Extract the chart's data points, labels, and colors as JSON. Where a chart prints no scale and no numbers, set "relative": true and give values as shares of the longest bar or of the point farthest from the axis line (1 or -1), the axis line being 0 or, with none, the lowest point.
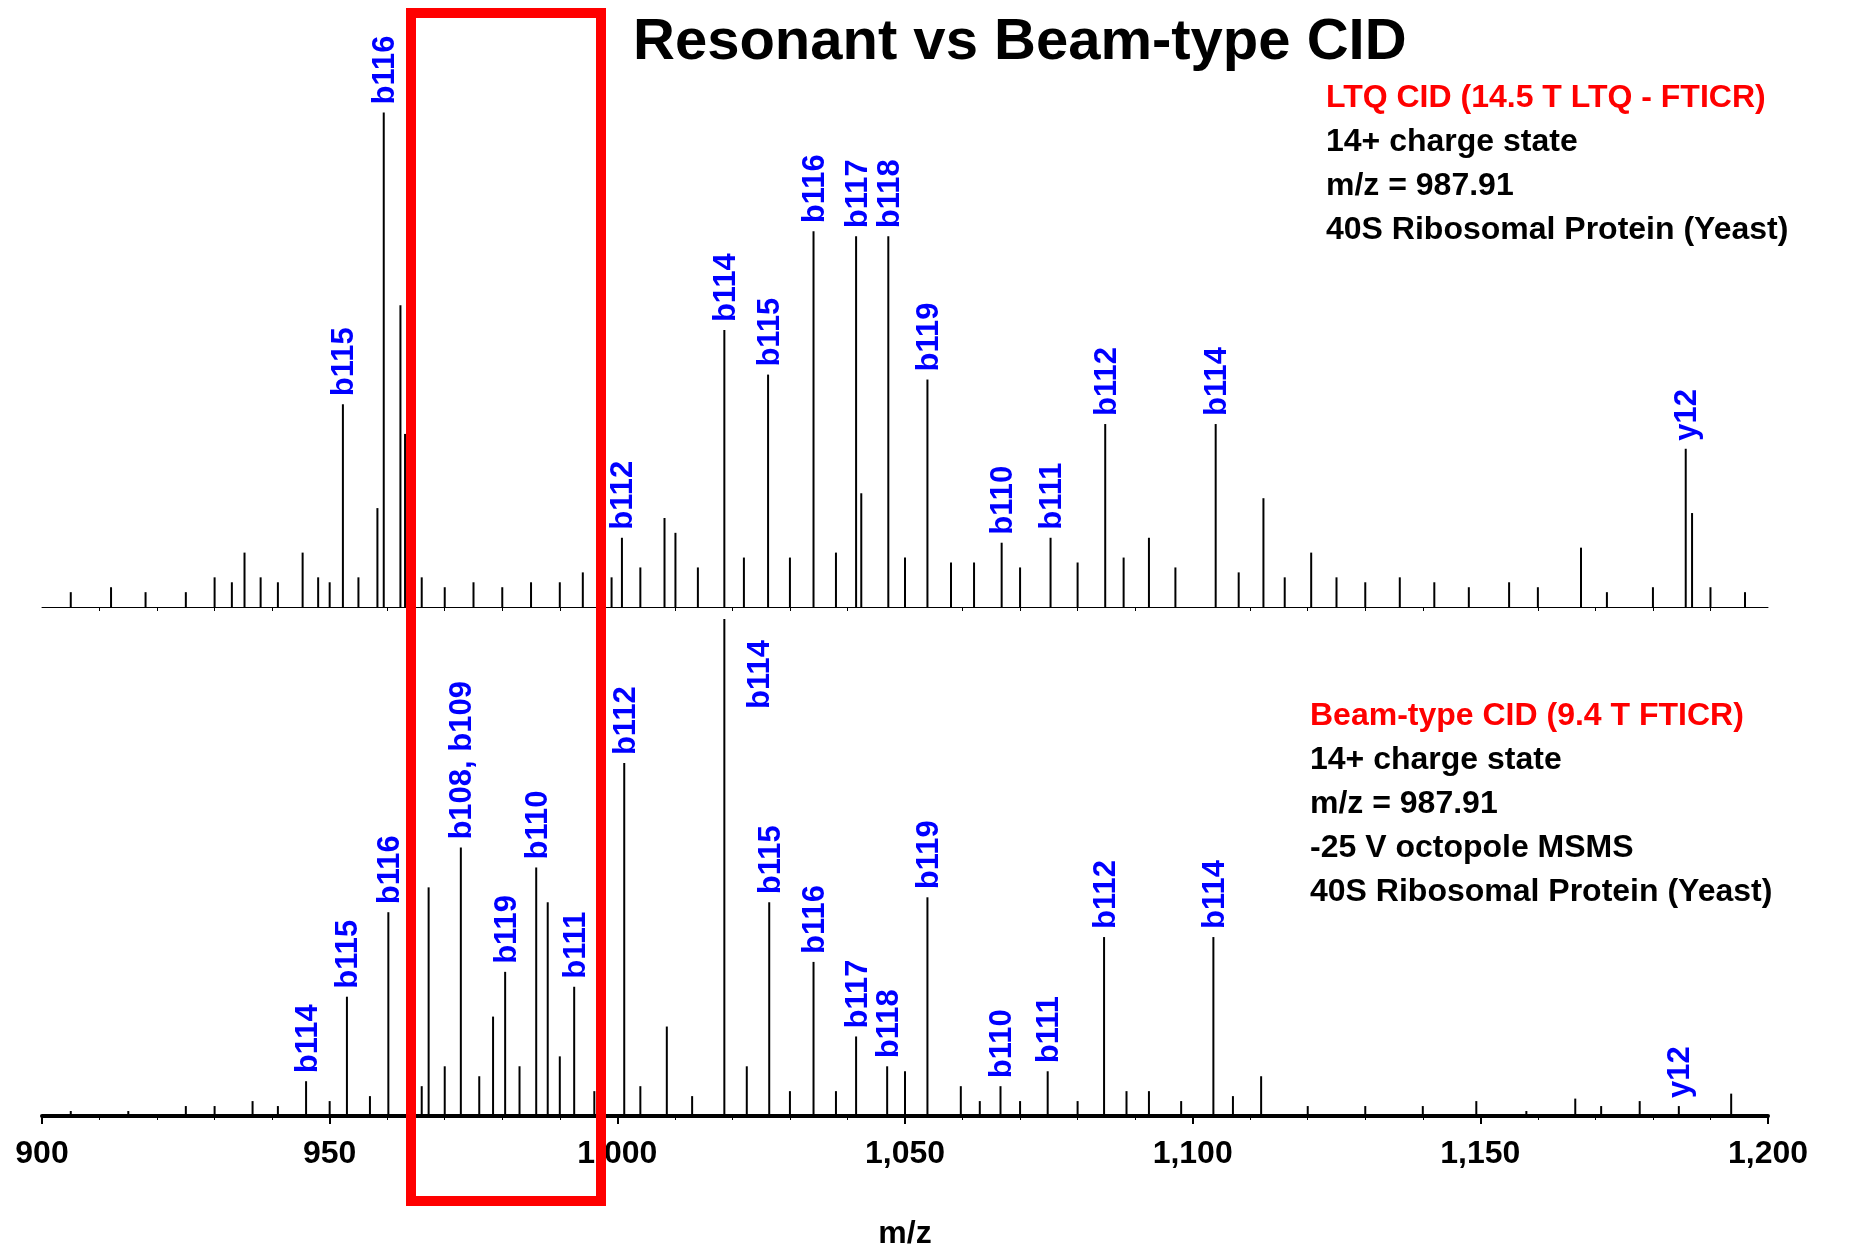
{
  "chart_data": [
    {
      "type": "bar",
      "title": "Resonant vs Beam-type CID",
      "relative": true,
      "tick_labels": false,
      "color": "#000000",
      "x": [
        905,
        912,
        918,
        925,
        930,
        933,
        935.2,
        938,
        941,
        945.3,
        948,
        950,
        952.3,
        955,
        958.3,
        959.4,
        962.3,
        963.1,
        966,
        970,
        975,
        980,
        985,
        990,
        994,
        999,
        1000.8,
        1004,
        1008.2,
        1010.1,
        1014,
        1018.6,
        1022,
        1026.2,
        1030,
        1034.1,
        1038,
        1041.5,
        1042.4,
        1047.1,
        1050,
        1053.9,
        1058,
        1062,
        1066.8,
        1070,
        1075.3,
        1080,
        1084.8,
        1088,
        1092.4,
        1097,
        1104,
        1108,
        1112.3,
        1116,
        1120.6,
        1125,
        1130,
        1136,
        1142,
        1148,
        1155,
        1160,
        1167.5,
        1172,
        1180,
        1185.7,
        1186.8,
        1190,
        1196
      ],
      "values": [
        0.03,
        0.04,
        0.03,
        0.03,
        0.06,
        0.05,
        0.11,
        0.06,
        0.05,
        0.11,
        0.06,
        0.05,
        0.41,
        0.06,
        0.2,
        1.0,
        0.61,
        0.35,
        0.06,
        0.04,
        0.05,
        0.04,
        0.05,
        0.05,
        0.07,
        0.06,
        0.14,
        0.08,
        0.18,
        0.15,
        0.08,
        0.56,
        0.1,
        0.47,
        0.1,
        0.76,
        0.11,
        0.75,
        0.23,
        0.75,
        0.1,
        0.46,
        0.09,
        0.09,
        0.13,
        0.08,
        0.14,
        0.09,
        0.37,
        0.1,
        0.14,
        0.08,
        0.37,
        0.07,
        0.22,
        0.06,
        0.11,
        0.06,
        0.05,
        0.06,
        0.05,
        0.04,
        0.05,
        0.04,
        0.12,
        0.03,
        0.04,
        0.32,
        0.19,
        0.04,
        0.03
      ],
      "xlim": [
        900,
        1200
      ],
      "annotations": [
        "LTQ CID (14.5 T LTQ - FTICR)",
        "14+ charge state",
        "m/z = 987.91",
        "40S Ribosomal Protein (Yeast)",
        {
          "text": "b115",
          "x": 952.3,
          "y": 0.41
        },
        {
          "text": "b116",
          "x": 959.4,
          "y": 1.0
        },
        {
          "text": "b112",
          "x": 1000.8,
          "y": 0.14
        },
        {
          "text": "b114",
          "x": 1018.6,
          "y": 0.56
        },
        {
          "text": "b115",
          "x": 1026.2,
          "y": 0.47
        },
        {
          "text": "b116",
          "x": 1034.1,
          "y": 0.76
        },
        {
          "text": "b117",
          "x": 1041.5,
          "y": 0.75
        },
        {
          "text": "b118",
          "x": 1047.1,
          "y": 0.75
        },
        {
          "text": "b119",
          "x": 1053.9,
          "y": 0.46
        },
        {
          "text": "b110",
          "x": 1066.8,
          "y": 0.13
        },
        {
          "text": "b111",
          "x": 1075.3,
          "y": 0.14
        },
        {
          "text": "b112",
          "x": 1084.8,
          "y": 0.37
        },
        {
          "text": "b114",
          "x": 1104,
          "y": 0.37
        },
        {
          "text": "y12",
          "x": 1185.7,
          "y": 0.32
        }
      ]
    },
    {
      "type": "bar",
      "xlabel": "m/z",
      "relative": true,
      "tick_labels": "x",
      "color": "#000000",
      "x": [
        905,
        915,
        925,
        930,
        936.6,
        941,
        945.9,
        950,
        953.0,
        957,
        960.2,
        966,
        967.2,
        970,
        972.8,
        976,
        978.4,
        980.5,
        983,
        985.9,
        987.9,
        990,
        992.5,
        996,
        1001.2,
        1004,
        1008.6,
        1013,
        1018.6,
        1022.5,
        1026.4,
        1030,
        1034.1,
        1038,
        1041.5,
        1046.9,
        1050.0,
        1053.9,
        1059.7,
        1063,
        1066.6,
        1070,
        1074.8,
        1080,
        1084.6,
        1088.5,
        1092.4,
        1098,
        1103.6,
        1107,
        1111.9,
        1120,
        1130,
        1140,
        1149.3,
        1158,
        1166.5,
        1171,
        1177.7,
        1184.5,
        1193.6
      ],
      "values": [
        0.01,
        0.01,
        0.02,
        0.02,
        0.03,
        0.02,
        0.07,
        0.03,
        0.24,
        0.04,
        0.41,
        0.06,
        0.46,
        0.1,
        0.54,
        0.08,
        0.2,
        0.29,
        0.1,
        0.5,
        0.43,
        0.12,
        0.26,
        0.05,
        0.71,
        0.06,
        0.18,
        0.04,
        1.0,
        0.1,
        0.43,
        0.05,
        0.31,
        0.05,
        0.16,
        0.1,
        0.09,
        0.44,
        0.06,
        0.03,
        0.06,
        0.03,
        0.09,
        0.03,
        0.36,
        0.05,
        0.05,
        0.03,
        0.36,
        0.04,
        0.08,
        0.02,
        0.02,
        0.02,
        0.03,
        0.01,
        0.035,
        0.02,
        0.03,
        0.02,
        0.045
      ],
      "xlim": [
        900,
        1200
      ],
      "xticks": [
        900,
        950,
        {
          "value": 1000,
          "label": "1,000"
        },
        {
          "value": 1050,
          "label": "1,050"
        },
        {
          "value": 1100,
          "label": "1,100"
        },
        {
          "value": 1150,
          "label": "1,150"
        },
        {
          "value": 1200,
          "label": "1,200"
        }
      ],
      "annotations": [
        "Beam-type CID (9.4 T FTICR)",
        "14+ charge state",
        "m/z = 987.91",
        "-25 V octopole MSMS",
        "40S Ribosomal Protein (Yeast)",
        {
          "text": "b114",
          "x": 945.9,
          "y": 0.07
        },
        {
          "text": "b115",
          "x": 953.0,
          "y": 0.24
        },
        {
          "text": "b116",
          "x": 960.2,
          "y": 0.41
        },
        {
          "text": "b108, b109",
          "x": 972.8,
          "y": 0.54
        },
        {
          "text": "b119",
          "x": 980.5,
          "y": 0.29
        },
        {
          "text": "b110",
          "x": 985.9,
          "y": 0.5
        },
        {
          "text": "b111",
          "x": 992.5,
          "y": 0.26
        },
        {
          "text": "b112",
          "x": 1001.2,
          "y": 0.71
        },
        {
          "text": "b114",
          "x": 1018.6,
          "y": 1.0
        },
        {
          "text": "b115",
          "x": 1026.4,
          "y": 0.43
        },
        {
          "text": "b116",
          "x": 1034.1,
          "y": 0.31
        },
        {
          "text": "b117",
          "x": 1041.5,
          "y": 0.16
        },
        {
          "text": "b118",
          "x": 1046.9,
          "y": 0.1
        },
        {
          "text": "b119",
          "x": 1053.9,
          "y": 0.44
        },
        {
          "text": "b110",
          "x": 1066.6,
          "y": 0.06
        },
        {
          "text": "b111",
          "x": 1074.8,
          "y": 0.09
        },
        {
          "text": "b112",
          "x": 1084.6,
          "y": 0.36
        },
        {
          "text": "b114",
          "x": 1103.6,
          "y": 0.36
        },
        {
          "text": "y12",
          "x": 1184.5,
          "y": 0.02
        }
      ]
    }
  ]
}
